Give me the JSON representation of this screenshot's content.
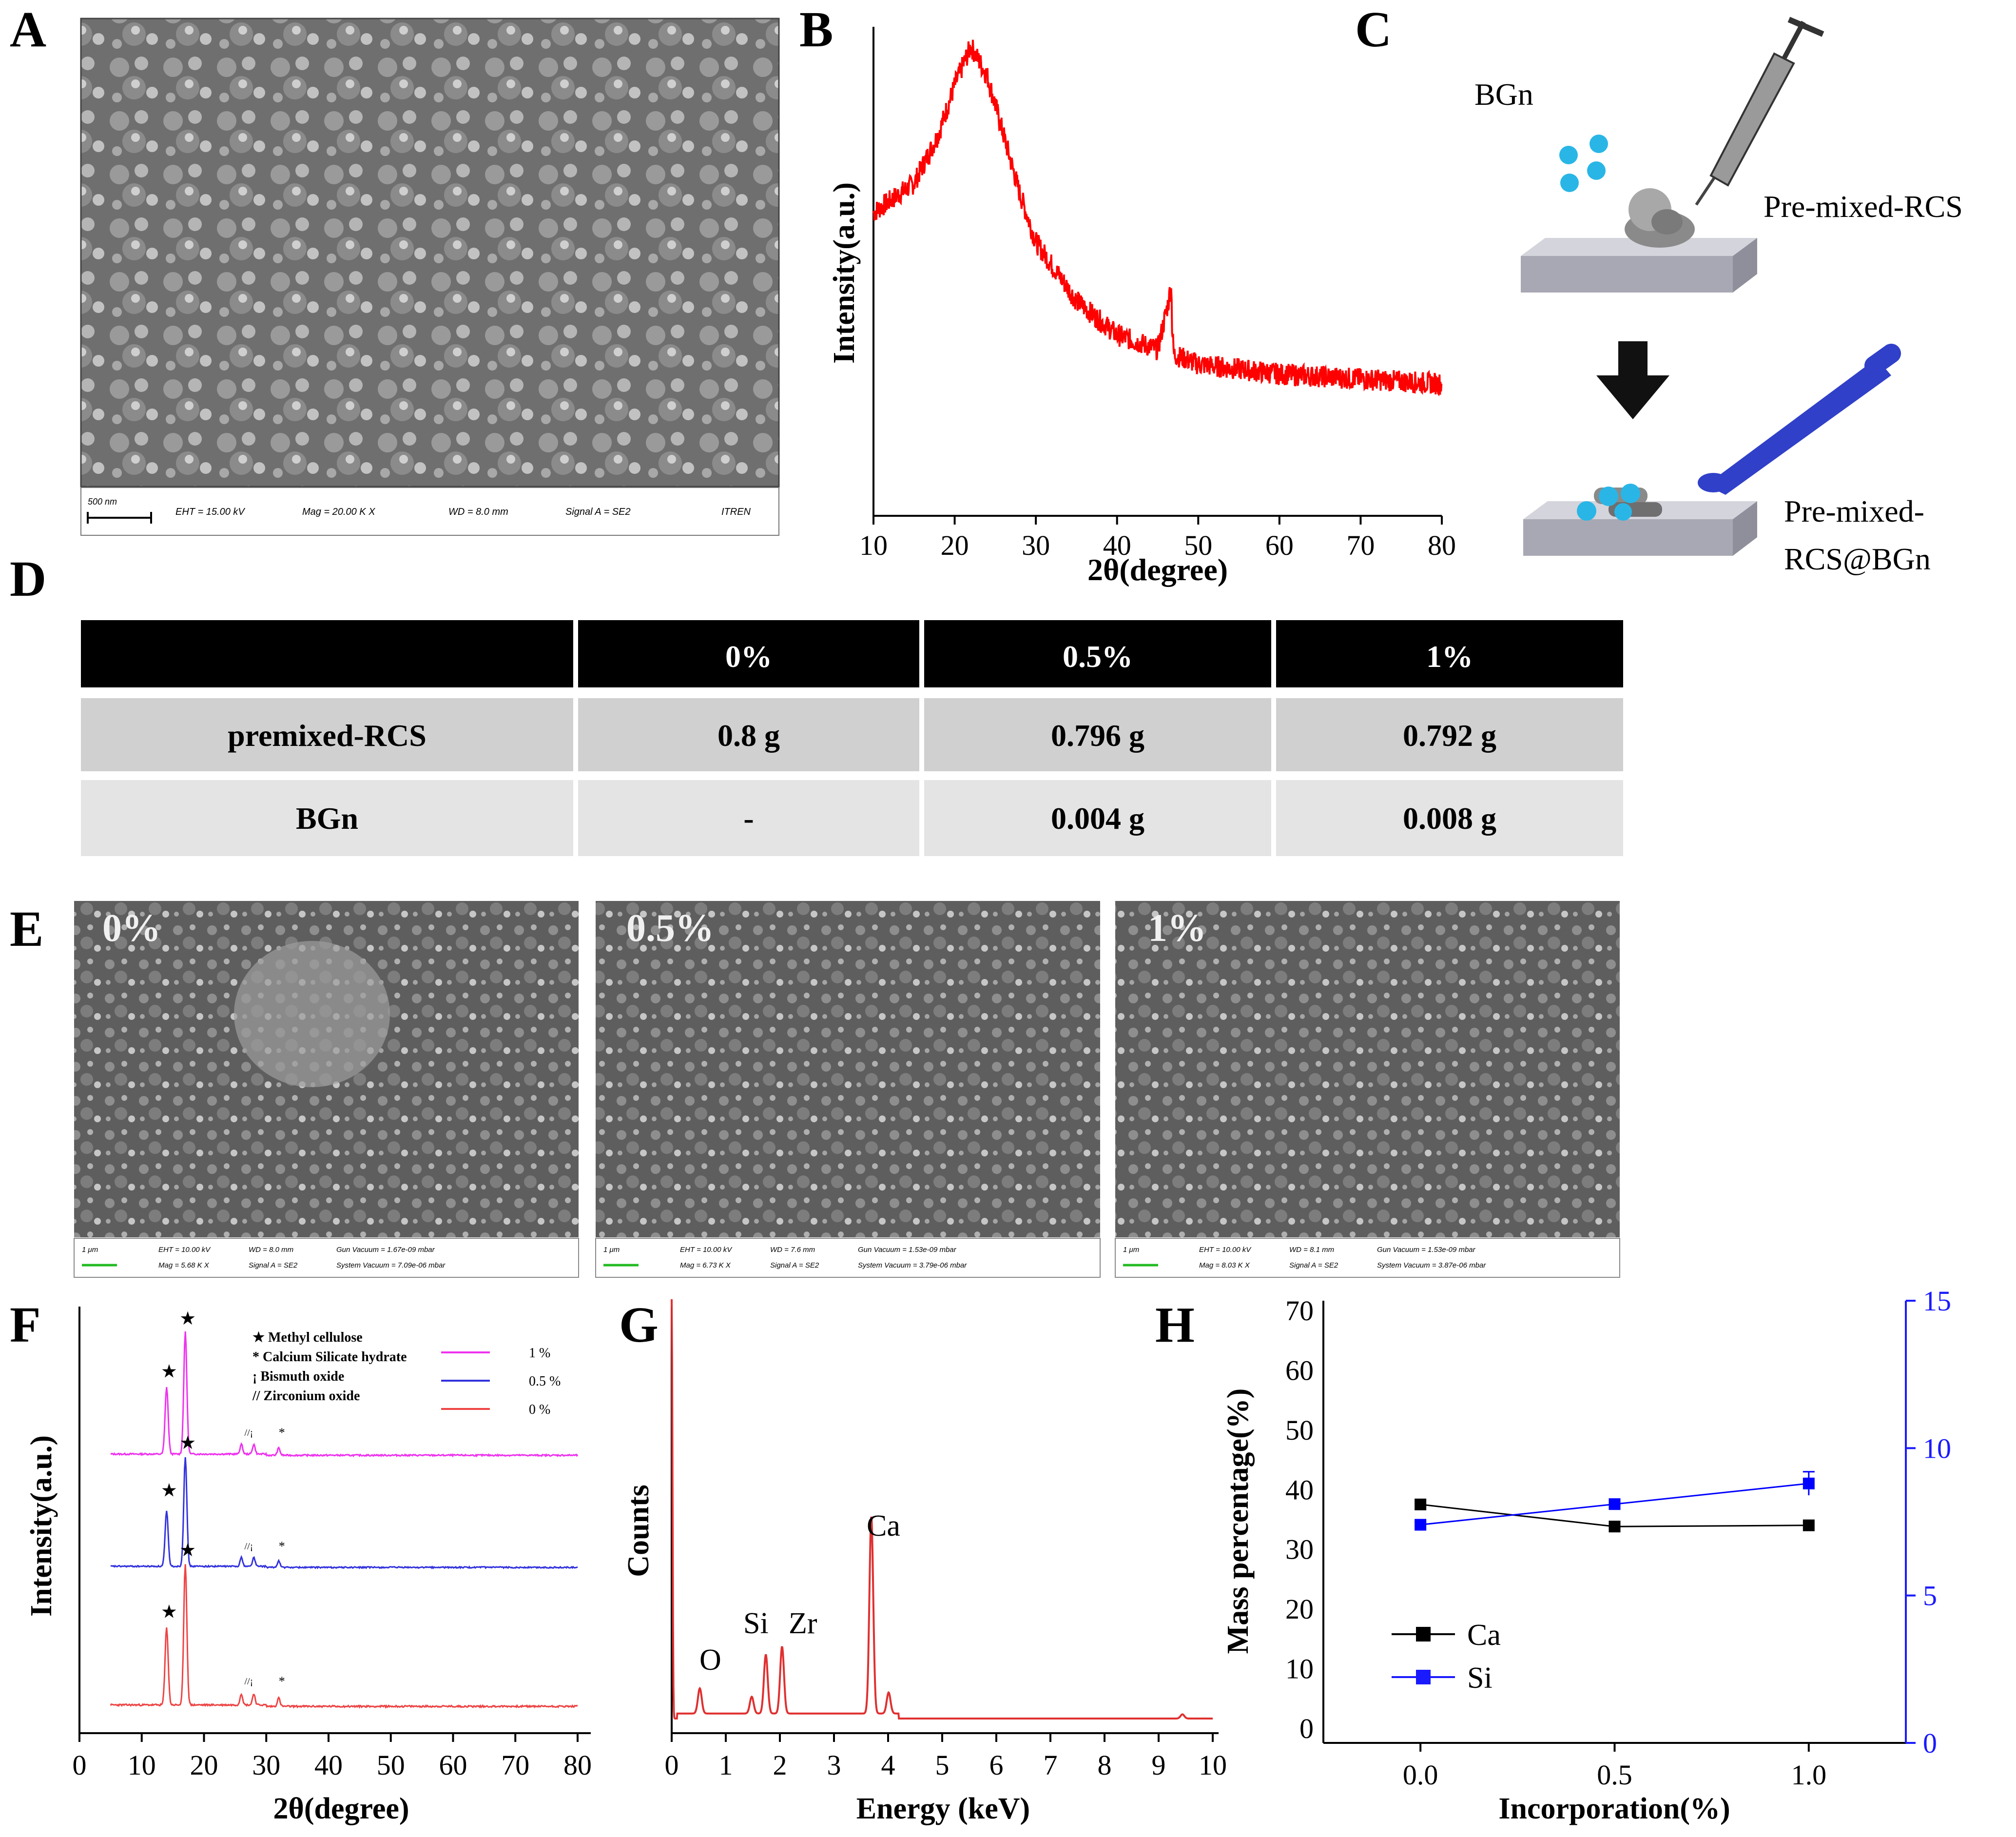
{
  "panels": {
    "A": {
      "letter": "A",
      "sem_info": {
        "scale": "500 nm",
        "eht": "EHT = 15.00 kV",
        "mag": "Mag = 20.00 K X",
        "wd": "WD = 8.0 mm",
        "signal": "Signal A = SE2",
        "inst": "ITREN"
      }
    },
    "B": {
      "letter": "B",
      "xlabel": "2θ(degree)",
      "ylabel": "Intensity(a.u.)",
      "ticks": [
        "10",
        "20",
        "30",
        "40",
        "50",
        "60",
        "70",
        "80"
      ]
    },
    "C": {
      "letter": "C",
      "bgn_label": "BGn",
      "premixed_label": "Pre-mixed-RCS",
      "product_label_1": "Pre-mixed-",
      "product_label_2": "RCS@BGn"
    },
    "D": {
      "letter": "D",
      "header": [
        "",
        "0%",
        "0.5%",
        "1%"
      ],
      "rows": [
        [
          "premixed-RCS",
          "0.8 g",
          "0.796 g",
          "0.792 g"
        ],
        [
          "BGn",
          "-",
          "0.004 g",
          "0.008 g"
        ]
      ]
    },
    "E": {
      "letter": "E",
      "images": [
        {
          "label": "0%",
          "scale": "1 μm",
          "eht": "EHT = 10.00 kV",
          "wd": "WD = 8.0 mm",
          "vac": "Gun Vacuum = 1.67e-09 mbar",
          "mag": "Mag = 5.68 K X",
          "signal": "Signal A = SE2",
          "sys": "System Vacuum = 7.09e-06 mbar"
        },
        {
          "label": "0.5%",
          "scale": "1 μm",
          "eht": "EHT = 10.00 kV",
          "wd": "WD = 7.6 mm",
          "vac": "Gun Vacuum = 1.53e-09 mbar",
          "mag": "Mag = 6.73 K X",
          "signal": "Signal A = SE2",
          "sys": "System Vacuum = 3.79e-06 mbar"
        },
        {
          "label": "1%",
          "scale": "1 μm",
          "eht": "EHT = 10.00 kV",
          "wd": "WD = 8.1 mm",
          "vac": "Gun Vacuum = 1.53e-09 mbar",
          "mag": "Mag = 8.03 K X",
          "signal": "Signal A = SE2",
          "sys": "System Vacuum = 3.87e-06 mbar"
        }
      ]
    },
    "F": {
      "letter": "F",
      "xlabel": "2θ(degree)",
      "ylabel": "Intensity(a.u.)",
      "ticks": [
        "0",
        "10",
        "20",
        "30",
        "40",
        "50",
        "60",
        "70",
        "80"
      ],
      "key": [
        "★ Methyl cellulose",
        "* Calcium Silicate hydrate",
        "¡ Bismuth oxide",
        "// Zirconium oxide"
      ],
      "legend": [
        "1 %",
        "0.5 %",
        "0 %"
      ],
      "colors": [
        "#ee33ee",
        "#3333dd",
        "#ee4444"
      ],
      "peak_marks": {
        "star": "★",
        "csh": "*",
        "mix": "//¡"
      }
    },
    "G": {
      "letter": "G",
      "xlabel": "Energy (keV)",
      "ylabel": "Counts",
      "ticks": [
        "0",
        "1",
        "2",
        "3",
        "4",
        "5",
        "6",
        "7",
        "8",
        "9",
        "10"
      ],
      "peak_labels": [
        "O",
        "Si",
        "Zr",
        "Ca"
      ]
    },
    "H": {
      "letter": "H",
      "ylabel": "Mass percentage(%)",
      "xlabel": "Incorporation(%)",
      "left_ticks": [
        "0",
        "10",
        "20",
        "30",
        "40",
        "50",
        "60",
        "70"
      ],
      "right_ticks": [
        "0",
        "5",
        "10",
        "15"
      ],
      "x_ticks": [
        "0.0",
        "0.5",
        "1.0"
      ],
      "legend": [
        "Ca",
        "Si"
      ]
    }
  },
  "chart_data": [
    {
      "type": "line",
      "panel": "B",
      "xlabel": "2θ(degree)",
      "ylabel": "Intensity(a.u.)",
      "xlim": [
        10,
        80
      ],
      "color": "#ff0000",
      "series": [
        {
          "x": [
            10,
            15,
            18,
            20,
            22,
            24,
            26,
            28,
            30,
            35,
            40,
            45,
            46.5,
            47,
            50,
            60,
            70,
            80
          ],
          "y": [
            0.62,
            0.68,
            0.78,
            0.88,
            0.96,
            0.9,
            0.78,
            0.66,
            0.56,
            0.44,
            0.37,
            0.34,
            0.45,
            0.33,
            0.31,
            0.29,
            0.28,
            0.27
          ]
        }
      ]
    },
    {
      "type": "line",
      "panel": "F",
      "xlabel": "2θ(degree)",
      "ylabel": "Intensity(a.u.)",
      "xlim": [
        0,
        80
      ],
      "series": [
        {
          "name": "1 %",
          "peaks": [
            [
              14,
              0.55
            ],
            [
              17,
              1.0
            ],
            [
              26,
              0.08
            ],
            [
              28,
              0.08
            ],
            [
              32,
              0.06
            ]
          ]
        },
        {
          "name": "0.5 %",
          "peaks": [
            [
              14,
              0.5
            ],
            [
              17,
              1.0
            ],
            [
              26,
              0.08
            ],
            [
              28,
              0.08
            ],
            [
              32,
              0.06
            ]
          ]
        },
        {
          "name": "0 %",
          "peaks": [
            [
              14,
              0.55
            ],
            [
              17,
              1.0
            ],
            [
              26,
              0.08
            ],
            [
              28,
              0.08
            ],
            [
              32,
              0.06
            ]
          ]
        }
      ]
    },
    {
      "type": "line",
      "panel": "G",
      "xlabel": "Energy (keV)",
      "ylabel": "Counts",
      "xlim": [
        0,
        10
      ],
      "peaks": [
        [
          0.0,
          1.0
        ],
        [
          0.52,
          0.06
        ],
        [
          1.48,
          0.04
        ],
        [
          1.74,
          0.14
        ],
        [
          2.04,
          0.16
        ],
        [
          3.69,
          0.47
        ],
        [
          4.01,
          0.05
        ],
        [
          9.44,
          0.01
        ]
      ]
    },
    {
      "type": "line",
      "panel": "H",
      "xlabel": "Incorporation(%)",
      "ylabel": "Mass percentage(%)",
      "x": [
        0.0,
        0.5,
        1.0
      ],
      "xlim": [
        -0.25,
        1.25
      ],
      "series": [
        {
          "name": "Ca",
          "axis": "left",
          "ylim": [
            0,
            70
          ],
          "values": [
            37.5,
            33.8,
            34.0
          ],
          "color": "#000000"
        },
        {
          "name": "Si",
          "axis": "right",
          "ylim": [
            0,
            15
          ],
          "values": [
            7.4,
            8.1,
            8.8
          ],
          "err": [
            0.1,
            0.1,
            0.4
          ],
          "color": "#0000ff"
        }
      ]
    }
  ]
}
